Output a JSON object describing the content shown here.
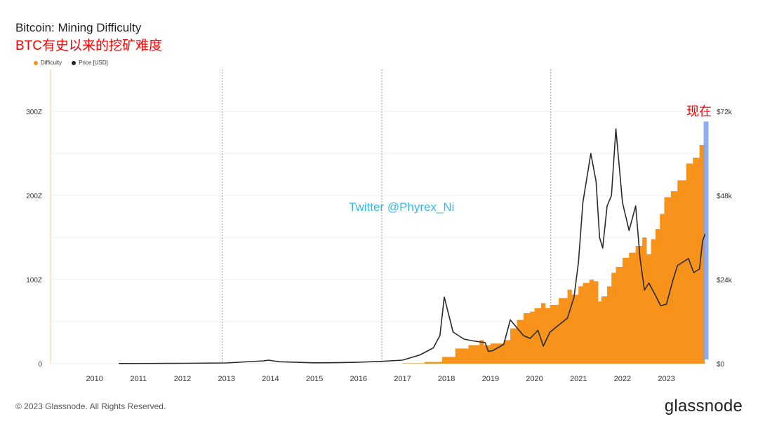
{
  "header": {
    "title": "Bitcoin: Mining Difficulty",
    "subtitle": "BTC有史以来的挖矿难度"
  },
  "legend": [
    {
      "label": "Difficulty",
      "color": "#f7931a"
    },
    {
      "label": "Price [USD]",
      "color": "#222222"
    }
  ],
  "annotations": {
    "watermark": "Twitter @Phyrex_Ni",
    "now_label": "现在"
  },
  "footer": {
    "copyright": "© 2023 Glassnode. All Rights Reserved.",
    "brand": "glassnode"
  },
  "chart_data": {
    "type": "area",
    "x_ticks": [
      "2010",
      "2011",
      "2012",
      "2013",
      "2014",
      "2015",
      "2016",
      "2017",
      "2018",
      "2019",
      "2020",
      "2021",
      "2022",
      "2023"
    ],
    "y_left_ticks": [
      "0",
      "100Z",
      "200Z",
      "300Z"
    ],
    "y_right_ticks": [
      "$0",
      "$24k",
      "$48k",
      "$72k"
    ],
    "y_left_lim": [
      0,
      350
    ],
    "y_right_lim": [
      0,
      84
    ],
    "x_lim": [
      2009.0,
      2023.9
    ],
    "colors": {
      "difficulty": "#f7931a",
      "price": "#2a2a2a",
      "highlight": "#7aa0f0"
    },
    "series": [
      {
        "name": "Difficulty",
        "axis": "left",
        "points": [
          [
            2009.0,
            0
          ],
          [
            2016.0,
            0
          ],
          [
            2017.0,
            0.5
          ],
          [
            2017.5,
            2
          ],
          [
            2017.9,
            8
          ],
          [
            2018.2,
            18
          ],
          [
            2018.5,
            22
          ],
          [
            2018.75,
            28
          ],
          [
            2018.85,
            22
          ],
          [
            2019.0,
            24
          ],
          [
            2019.3,
            28
          ],
          [
            2019.45,
            42
          ],
          [
            2019.6,
            52
          ],
          [
            2019.75,
            60
          ],
          [
            2019.9,
            62
          ],
          [
            2020.0,
            66
          ],
          [
            2020.15,
            72
          ],
          [
            2020.25,
            66
          ],
          [
            2020.35,
            70
          ],
          [
            2020.55,
            78
          ],
          [
            2020.75,
            88
          ],
          [
            2020.85,
            82
          ],
          [
            2021.0,
            92
          ],
          [
            2021.1,
            96
          ],
          [
            2021.25,
            100
          ],
          [
            2021.35,
            98
          ],
          [
            2021.45,
            74
          ],
          [
            2021.52,
            80
          ],
          [
            2021.65,
            92
          ],
          [
            2021.75,
            108
          ],
          [
            2021.85,
            115
          ],
          [
            2022.0,
            126
          ],
          [
            2022.15,
            132
          ],
          [
            2022.3,
            140
          ],
          [
            2022.45,
            150
          ],
          [
            2022.55,
            130
          ],
          [
            2022.65,
            148
          ],
          [
            2022.75,
            160
          ],
          [
            2022.85,
            178
          ],
          [
            2022.95,
            198
          ],
          [
            2023.1,
            205
          ],
          [
            2023.25,
            218
          ],
          [
            2023.45,
            238
          ],
          [
            2023.6,
            245
          ],
          [
            2023.75,
            260
          ],
          [
            2023.87,
            262
          ]
        ]
      },
      {
        "name": "Price [USD]",
        "axis": "right",
        "points": [
          [
            2010.55,
            0.05
          ],
          [
            2012.0,
            0.1
          ],
          [
            2013.0,
            0.2
          ],
          [
            2013.85,
            0.8
          ],
          [
            2013.95,
            1.0
          ],
          [
            2014.2,
            0.55
          ],
          [
            2015.0,
            0.25
          ],
          [
            2015.5,
            0.28
          ],
          [
            2016.0,
            0.4
          ],
          [
            2016.5,
            0.65
          ],
          [
            2017.0,
            1.0
          ],
          [
            2017.4,
            2.5
          ],
          [
            2017.7,
            4.5
          ],
          [
            2017.85,
            8.0
          ],
          [
            2017.95,
            19.0
          ],
          [
            2018.05,
            14.0
          ],
          [
            2018.15,
            9.0
          ],
          [
            2018.4,
            7.0
          ],
          [
            2018.6,
            6.5
          ],
          [
            2018.88,
            6.0
          ],
          [
            2018.95,
            3.5
          ],
          [
            2019.05,
            3.7
          ],
          [
            2019.3,
            5.5
          ],
          [
            2019.45,
            12.5
          ],
          [
            2019.55,
            11.0
          ],
          [
            2019.75,
            8.0
          ],
          [
            2019.9,
            7.2
          ],
          [
            2020.08,
            9.5
          ],
          [
            2020.2,
            5.0
          ],
          [
            2020.35,
            9.0
          ],
          [
            2020.55,
            11.0
          ],
          [
            2020.75,
            13.0
          ],
          [
            2020.9,
            19.0
          ],
          [
            2021.0,
            29.0
          ],
          [
            2021.1,
            46.0
          ],
          [
            2021.28,
            60.0
          ],
          [
            2021.4,
            52.0
          ],
          [
            2021.48,
            36.0
          ],
          [
            2021.55,
            33.0
          ],
          [
            2021.65,
            45.0
          ],
          [
            2021.75,
            48.0
          ],
          [
            2021.85,
            67.0
          ],
          [
            2022.0,
            46.0
          ],
          [
            2022.15,
            38.0
          ],
          [
            2022.3,
            45.0
          ],
          [
            2022.4,
            30.0
          ],
          [
            2022.5,
            21.0
          ],
          [
            2022.6,
            23.0
          ],
          [
            2022.75,
            19.5
          ],
          [
            2022.87,
            16.5
          ],
          [
            2023.0,
            17.0
          ],
          [
            2023.15,
            24.0
          ],
          [
            2023.25,
            28.0
          ],
          [
            2023.5,
            30.0
          ],
          [
            2023.62,
            26.0
          ],
          [
            2023.75,
            27.0
          ],
          [
            2023.82,
            35.0
          ],
          [
            2023.88,
            37.0
          ]
        ]
      }
    ]
  }
}
